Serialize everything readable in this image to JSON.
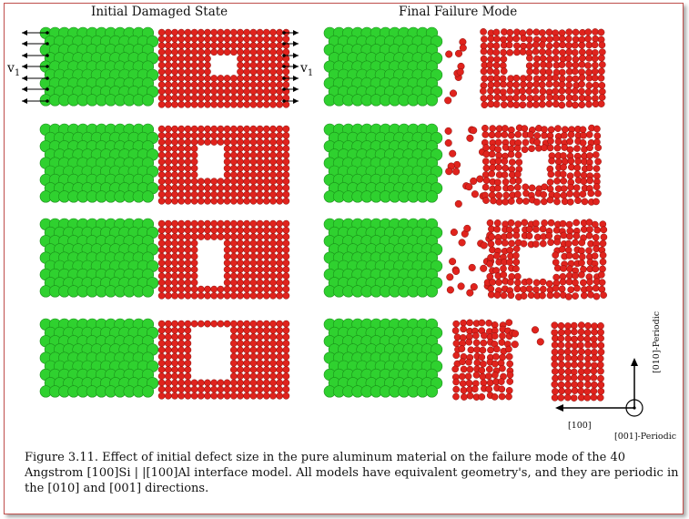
{
  "titles": {
    "left": "Initial Damaged State",
    "right": "Final Failure Mode"
  },
  "velocity_label": "v",
  "velocity_subscript": "1",
  "axes": {
    "vertical": "[010]-Periodic",
    "horizontal": "[100]",
    "out_of_plane": "[001]-Periodic"
  },
  "caption": "Figure 3.11. Effect of initial defect size in the pure aluminum material on the failure mode of the 40 Angstrom [100]Si | |[100]Al interface model.  All models have equivalent geometry's, and they are periodic in the [010] and [001] directions.",
  "colors": {
    "silicon": "#2fd12f",
    "aluminum": "#e0231d",
    "frame": "#c0504d"
  }
}
